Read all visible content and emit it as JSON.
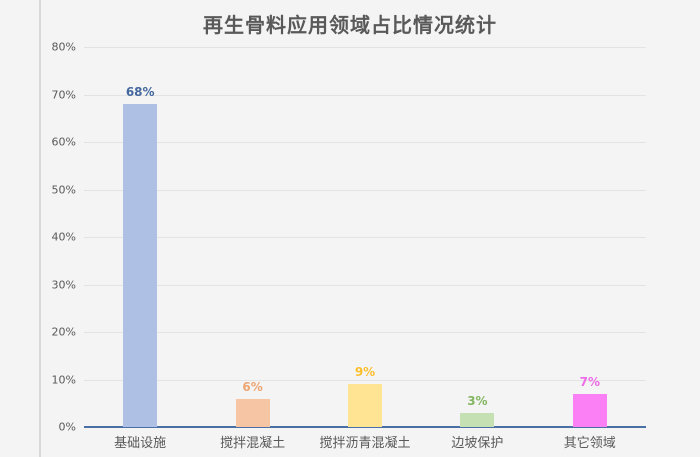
{
  "title": "再生骨料应用领域占比情况统计",
  "colors": {
    "background": "#f4f4f4",
    "title_text": "#595959",
    "tick_text": "#595959",
    "gridline": "#e3e3e3",
    "axis_line": "#4a6fa5",
    "left_border_line": "#d8d8d8"
  },
  "chart_data": {
    "type": "bar",
    "title": "再生骨料应用领域占比情况统计",
    "categories": [
      "基础设施",
      "搅拌混凝土",
      "搅拌沥青混凝土",
      "边坡保护",
      "其它领域"
    ],
    "values": [
      68,
      6,
      9,
      3,
      7
    ],
    "value_labels": [
      "68%",
      "6%",
      "9%",
      "3%",
      "7%"
    ],
    "bar_colors": [
      "#aec1e4",
      "#f6c6a4",
      "#ffe593",
      "#c5e0b3",
      "#fb80f5"
    ],
    "value_label_colors": [
      "#44689e",
      "#eda572",
      "#fcbf2e",
      "#84b661",
      "#ee6ce8"
    ],
    "xlabel": "",
    "ylabel": "",
    "ylim": [
      0,
      80
    ],
    "ytick_step": 10,
    "ytick_labels": [
      "0%",
      "10%",
      "20%",
      "30%",
      "40%",
      "50%",
      "60%",
      "70%",
      "80%"
    ],
    "grid": true,
    "legend": false
  }
}
